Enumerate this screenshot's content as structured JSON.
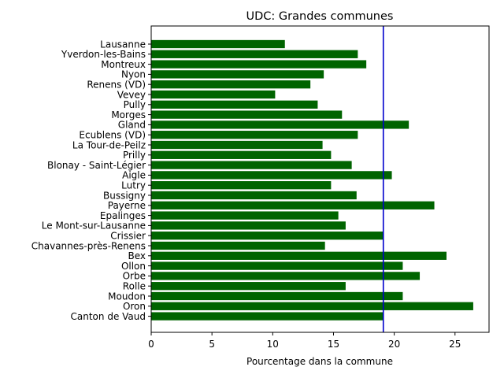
{
  "chart_data": {
    "type": "bar",
    "orientation": "horizontal",
    "title": "UDC: Grandes communes",
    "xlabel": "Pourcentage dans la commune",
    "ylabel": "",
    "xlim": [
      0,
      27.8
    ],
    "xticks": [
      0,
      5,
      10,
      15,
      20,
      25
    ],
    "bar_color": "#006400",
    "reference_line": {
      "value": 19.1,
      "color": "#0000cc"
    },
    "categories": [
      "Lausanne",
      "Yverdon-les-Bains",
      "Montreux",
      "Nyon",
      "Renens (VD)",
      "Vevey",
      "Pully",
      "Morges",
      "Gland",
      "Ecublens (VD)",
      "La Tour-de-Peilz",
      "Prilly",
      "Blonay - Saint-Légier",
      "Aigle",
      "Lutry",
      "Bussigny",
      "Payerne",
      "Epalinges",
      "Le Mont-sur-Lausanne",
      "Crissier",
      "Chavannes-près-Renens",
      "Bex",
      "Ollon",
      "Orbe",
      "Rolle",
      "Moudon",
      "Oron",
      "Canton de Vaud"
    ],
    "values": [
      11.0,
      17.0,
      17.7,
      14.2,
      13.1,
      10.2,
      13.7,
      15.7,
      21.2,
      17.0,
      14.1,
      14.8,
      16.5,
      19.8,
      14.8,
      16.9,
      23.3,
      15.4,
      16.0,
      19.1,
      14.3,
      24.3,
      20.7,
      22.1,
      16.0,
      20.7,
      26.5,
      19.1
    ]
  }
}
